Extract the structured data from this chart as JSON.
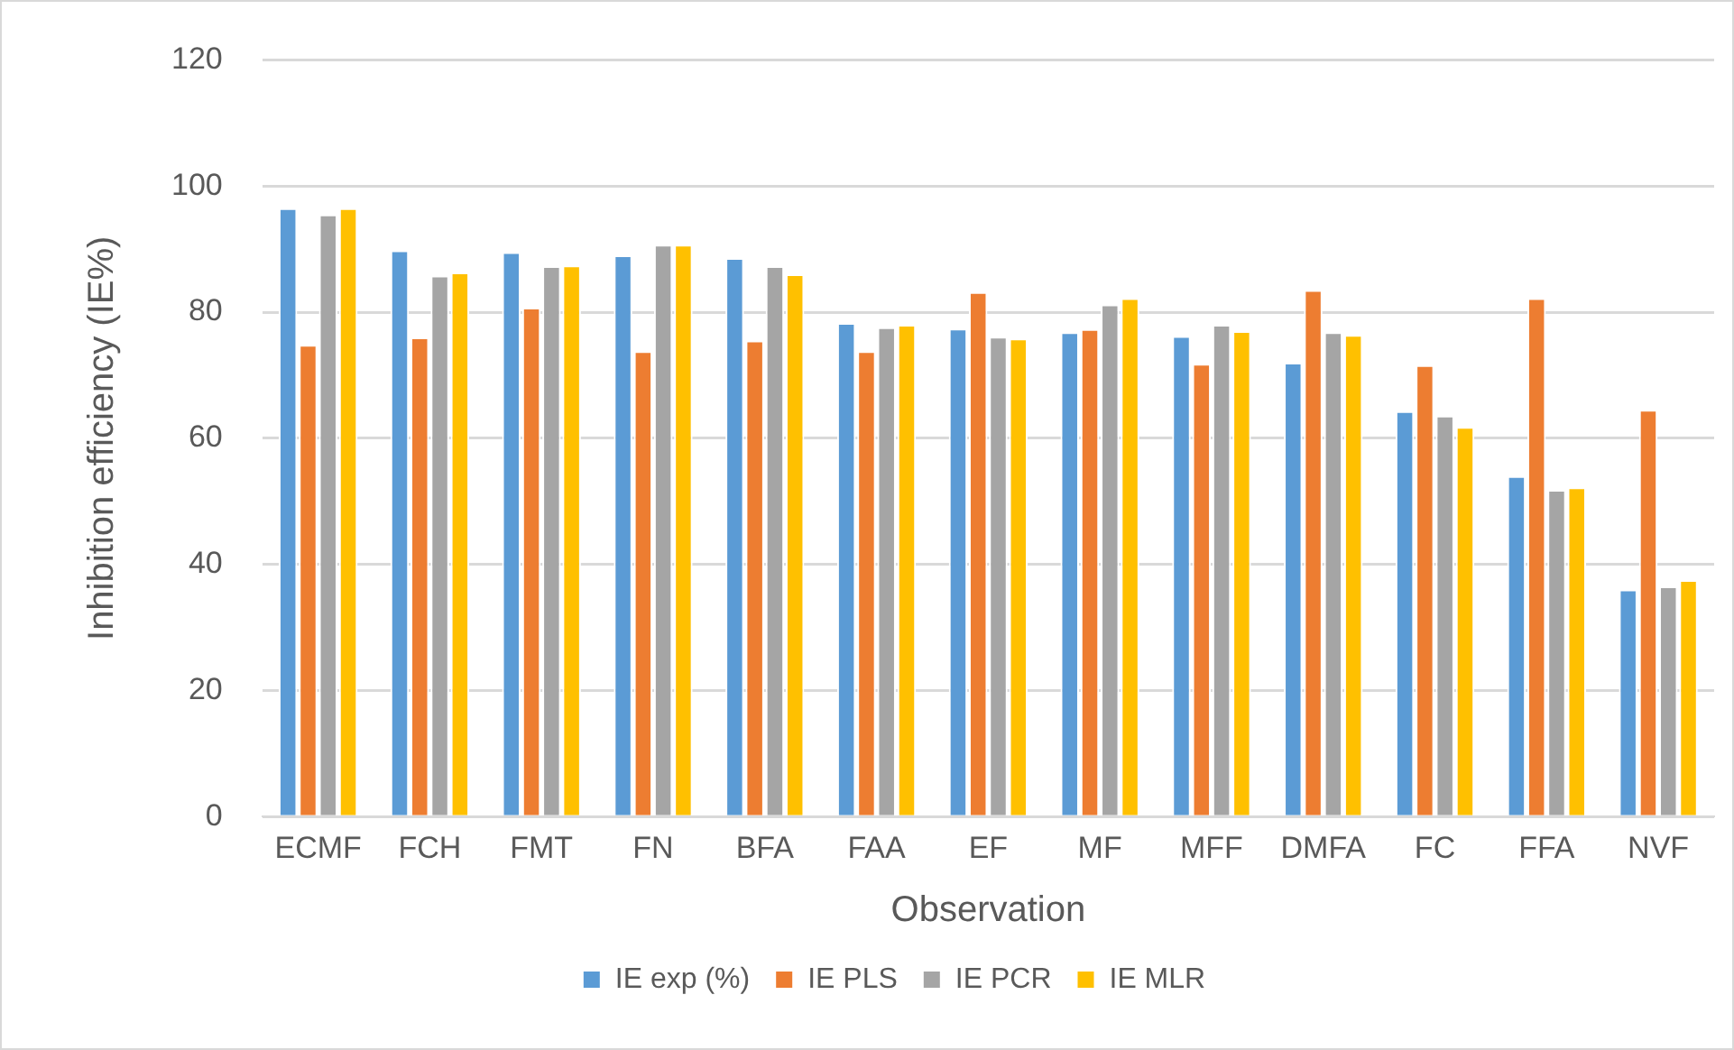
{
  "chart_data": {
    "type": "bar",
    "xlabel": "Observation",
    "ylabel": "Inhibition efficiency (IE%)",
    "categories": [
      "ECMF",
      "FCH",
      "FMT",
      "FN",
      "BFA",
      "FAA",
      "EF",
      "MF",
      "MFF",
      "DMFA",
      "FC",
      "FFA",
      "NVF"
    ],
    "series": [
      {
        "name": "IE exp (%)",
        "color": "#5b9bd5",
        "values": [
          96.5,
          89.8,
          89.5,
          89,
          88.6,
          78.3,
          77.4,
          76.8,
          76.2,
          72,
          64.3,
          54,
          36
        ]
      },
      {
        "name": "IE PLS",
        "color": "#ed7d31",
        "values": [
          74.8,
          76,
          80.7,
          73.8,
          75.5,
          73.8,
          83.2,
          77.3,
          71.8,
          83.5,
          71.6,
          82.2,
          64.5
        ]
      },
      {
        "name": "IE PCR",
        "color": "#a5a5a5",
        "values": [
          95.5,
          85.8,
          87.3,
          90.7,
          87.3,
          77.6,
          76.1,
          81.2,
          78,
          76.8,
          63.6,
          51.8,
          36.5
        ]
      },
      {
        "name": "IE MLR",
        "color": "#ffc000",
        "values": [
          96.5,
          86.3,
          87.4,
          90.7,
          86,
          78,
          75.8,
          82.2,
          77,
          76.4,
          61.8,
          52.2,
          37.5
        ]
      }
    ],
    "ylim": [
      0,
      120
    ],
    "yticks": [
      0,
      20,
      40,
      60,
      80,
      100,
      120
    ],
    "grid": "y",
    "legend": "bottom"
  }
}
